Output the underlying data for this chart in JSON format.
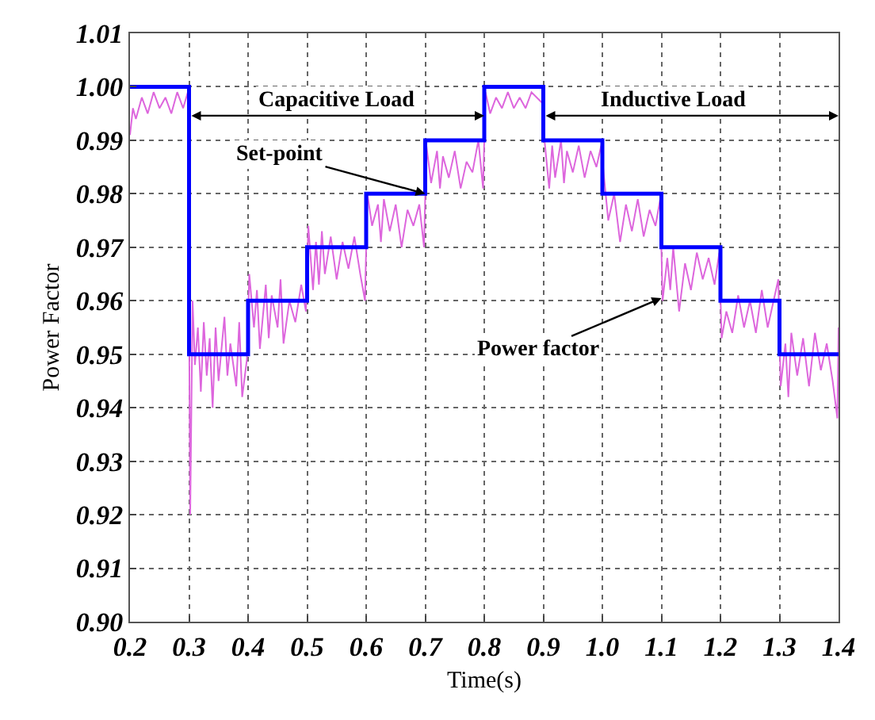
{
  "chart_data": {
    "type": "line",
    "xlabel": "Time(s)",
    "ylabel": "Power Factor",
    "xlim": [
      0.2,
      1.4
    ],
    "xticks": [
      0.2,
      0.3,
      0.4,
      0.5,
      0.6,
      0.7,
      0.8,
      0.9,
      {
        "value": 1.0,
        "label": "1.0"
      },
      1.1,
      1.2,
      1.3,
      1.4
    ],
    "ylim": [
      0.9,
      1.01
    ],
    "yticks": [
      {
        "value": 0.9,
        "label": "0.90"
      },
      0.91,
      0.92,
      0.93,
      0.94,
      0.95,
      0.96,
      0.97,
      0.98,
      0.99,
      {
        "value": 1.0,
        "label": "1.00"
      },
      1.01
    ],
    "grid": true,
    "line_style": "solid",
    "marker": "none",
    "series": [
      {
        "color": "#dd66dd",
        "x": [
          0.2,
          0.205,
          0.21,
          0.22,
          0.23,
          0.24,
          0.25,
          0.26,
          0.27,
          0.28,
          0.29,
          0.298,
          0.302,
          0.306,
          0.31,
          0.315,
          0.32,
          0.325,
          0.33,
          0.335,
          0.34,
          0.345,
          0.35,
          0.36,
          0.365,
          0.37,
          0.38,
          0.385,
          0.39,
          0.398,
          0.402,
          0.41,
          0.415,
          0.42,
          0.43,
          0.435,
          0.44,
          0.45,
          0.455,
          0.46,
          0.47,
          0.48,
          0.49,
          0.498,
          0.502,
          0.51,
          0.515,
          0.52,
          0.525,
          0.53,
          0.54,
          0.55,
          0.56,
          0.57,
          0.58,
          0.59,
          0.598,
          0.602,
          0.61,
          0.62,
          0.625,
          0.63,
          0.64,
          0.65,
          0.66,
          0.67,
          0.68,
          0.69,
          0.698,
          0.702,
          0.71,
          0.72,
          0.725,
          0.73,
          0.74,
          0.75,
          0.76,
          0.77,
          0.78,
          0.79,
          0.798,
          0.802,
          0.81,
          0.82,
          0.83,
          0.84,
          0.85,
          0.86,
          0.87,
          0.88,
          0.898,
          0.902,
          0.91,
          0.915,
          0.92,
          0.93,
          0.935,
          0.94,
          0.95,
          0.96,
          0.97,
          0.98,
          0.99,
          0.998,
          1.002,
          1.01,
          1.02,
          1.03,
          1.04,
          1.05,
          1.06,
          1.07,
          1.08,
          1.09,
          1.098,
          1.102,
          1.11,
          1.115,
          1.12,
          1.13,
          1.14,
          1.15,
          1.16,
          1.17,
          1.18,
          1.19,
          1.198,
          1.202,
          1.21,
          1.22,
          1.23,
          1.24,
          1.25,
          1.26,
          1.27,
          1.28,
          1.29,
          1.298,
          1.302,
          1.31,
          1.315,
          1.32,
          1.33,
          1.34,
          1.35,
          1.36,
          1.37,
          1.38,
          1.39,
          1.398,
          1.4
        ],
        "values": [
          0.991,
          0.996,
          0.994,
          0.998,
          0.995,
          0.999,
          0.996,
          0.998,
          0.995,
          0.999,
          0.996,
          0.999,
          0.92,
          0.96,
          0.948,
          0.955,
          0.943,
          0.956,
          0.946,
          0.953,
          0.94,
          0.955,
          0.945,
          0.957,
          0.946,
          0.952,
          0.944,
          0.956,
          0.942,
          0.949,
          0.965,
          0.955,
          0.962,
          0.951,
          0.963,
          0.953,
          0.961,
          0.955,
          0.964,
          0.952,
          0.96,
          0.956,
          0.963,
          0.958,
          0.974,
          0.962,
          0.971,
          0.963,
          0.973,
          0.965,
          0.972,
          0.964,
          0.971,
          0.966,
          0.972,
          0.965,
          0.96,
          0.98,
          0.974,
          0.978,
          0.971,
          0.979,
          0.973,
          0.978,
          0.97,
          0.977,
          0.974,
          0.978,
          0.97,
          0.989,
          0.982,
          0.988,
          0.981,
          0.987,
          0.983,
          0.988,
          0.981,
          0.986,
          0.984,
          0.99,
          0.981,
          0.999,
          0.995,
          0.998,
          0.996,
          0.999,
          0.996,
          0.998,
          0.996,
          0.999,
          0.997,
          0.99,
          0.981,
          0.989,
          0.983,
          0.99,
          0.982,
          0.988,
          0.984,
          0.989,
          0.983,
          0.988,
          0.985,
          0.989,
          0.984,
          0.975,
          0.98,
          0.971,
          0.978,
          0.973,
          0.979,
          0.972,
          0.977,
          0.974,
          0.979,
          0.96,
          0.968,
          0.962,
          0.97,
          0.958,
          0.967,
          0.962,
          0.969,
          0.964,
          0.968,
          0.963,
          0.969,
          0.953,
          0.958,
          0.954,
          0.961,
          0.955,
          0.96,
          0.954,
          0.962,
          0.955,
          0.96,
          0.964,
          0.944,
          0.952,
          0.942,
          0.954,
          0.946,
          0.953,
          0.944,
          0.954,
          0.947,
          0.952,
          0.945,
          0.938,
          0.955
        ]
      },
      {
        "type": "step",
        "color": "#0000ff",
        "x": [
          0.2,
          0.3,
          0.4,
          0.5,
          0.6,
          0.7,
          0.8,
          0.9,
          1.0,
          1.1,
          1.2,
          1.3,
          1.4
        ],
        "values": [
          1.0,
          0.95,
          0.96,
          0.97,
          0.98,
          0.99,
          1.0,
          0.99,
          0.98,
          0.97,
          0.96,
          0.95,
          0.95
        ]
      }
    ],
    "annotations": [
      "Capacitive Load",
      "Inductive Load",
      {
        "text": "Set-point",
        "x": 0.7,
        "y": 0.98
      },
      {
        "text": "Power factor",
        "x": 1.1,
        "y": 0.9605
      }
    ]
  }
}
